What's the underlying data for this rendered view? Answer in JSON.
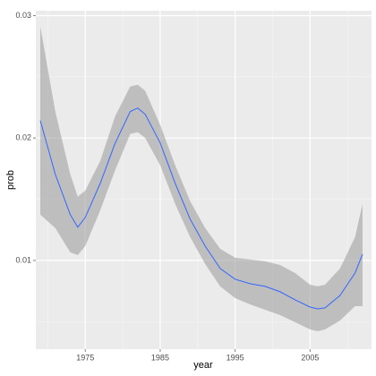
{
  "chart_data": {
    "type": "line",
    "x_label": "year",
    "y_label": "prob",
    "x": [
      1969,
      1971,
      1973,
      1974,
      1975,
      1977,
      1979,
      1981,
      1982,
      1983,
      1985,
      1987,
      1989,
      1991,
      1993,
      1995,
      1997,
      1999,
      2001,
      2003,
      2005,
      2006,
      2007,
      2009,
      2011,
      2012
    ],
    "values": [
      0.02143,
      0.01703,
      0.01374,
      0.01271,
      0.01352,
      0.0163,
      0.0196,
      0.02216,
      0.02245,
      0.02194,
      0.0196,
      0.0163,
      0.01337,
      0.01117,
      0.00934,
      0.00846,
      0.0081,
      0.00788,
      0.00744,
      0.00678,
      0.00619,
      0.00604,
      0.00612,
      0.00714,
      0.00897,
      0.01051
    ],
    "upper": [
      0.02912,
      0.02216,
      0.01703,
      0.0152,
      0.01571,
      0.01813,
      0.0218,
      0.02421,
      0.02436,
      0.02385,
      0.02106,
      0.01777,
      0.01484,
      0.01264,
      0.01095,
      0.01022,
      0.01007,
      0.00993,
      0.00963,
      0.00897,
      0.00802,
      0.00788,
      0.00802,
      0.00934,
      0.0119,
      0.01462
    ],
    "lower": [
      0.01374,
      0.01264,
      0.01066,
      0.01044,
      0.01117,
      0.0141,
      0.0174,
      0.02033,
      0.02048,
      0.02,
      0.01777,
      0.01462,
      0.0119,
      0.00971,
      0.00788,
      0.00692,
      0.00641,
      0.00597,
      0.00553,
      0.00495,
      0.00436,
      0.00421,
      0.00436,
      0.00509,
      0.00626,
      0.00626
    ],
    "color": "#3366ff",
    "band_color": "#999999",
    "xlim": [
      1968.4,
      2013.2
    ],
    "xticks": [
      1975,
      1985,
      1995,
      2005
    ],
    "ylim": [
      0.00275,
      0.0304
    ],
    "yticks": [
      0.01,
      0.02,
      0.03
    ],
    "grid": true
  }
}
